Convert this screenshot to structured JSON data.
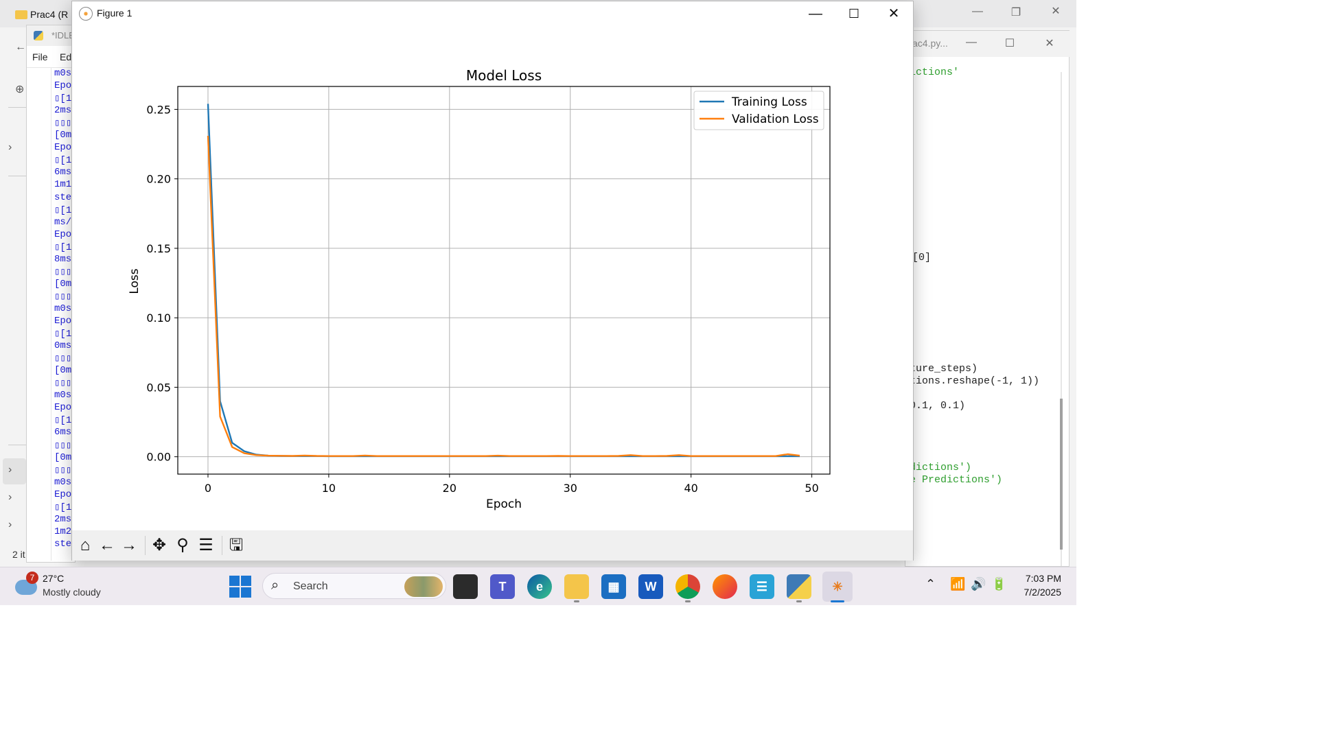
{
  "explorer": {
    "tab_title": "Prac4 (R",
    "status_text": "2 it"
  },
  "idle": {
    "title": "*IDLE",
    "menus": [
      "File",
      "Edi"
    ],
    "output_lines": [
      "m0s",
      "Epo",
      "▯[1i",
      "2ms",
      "▯▯▯▯",
      " [0m",
      "Epo",
      "▯[1i",
      "6ms",
      "1m1",
      "ste",
      "▯[1i",
      "ms/",
      "Epo",
      "▯[1i",
      "8ms",
      "▯▯▯▯",
      " [0m",
      "▯▯▯▯",
      "m0s",
      "Epo",
      "▯[1i",
      "0ms",
      "▯▯▯▯",
      " [0m",
      "▯▯▯▯",
      "m0s",
      "Epo",
      "▯[1i",
      "6ms",
      "▯▯▯▯",
      " [0m",
      "▯▯▯▯",
      "m0s",
      "Epo",
      "▯[1i",
      "2ms",
      "1m2",
      "ste"
    ]
  },
  "editor": {
    "title": "ac4.py...",
    "code_fragments": [
      {
        "text": "ictions'",
        "color": "#2e9e2e"
      },
      {
        "text": "[0]",
        "color": "#222222"
      },
      {
        "text": "ture_steps)",
        "color": "#222222"
      },
      {
        "text": "tions.reshape(-1, 1))",
        "color": "#222222"
      },
      {
        "text": " 0.1, 0.1)",
        "color": "#222222"
      },
      {
        "text": "dictions')",
        "color": "#2e9e2e"
      },
      {
        "text": "e Predictions')",
        "color": "#2e9e2e"
      }
    ]
  },
  "figure": {
    "window_title": "Figure 1",
    "toolbar": [
      "home-icon",
      "back-icon",
      "forward-icon",
      "pan-icon",
      "zoom-icon",
      "configure-icon",
      "save-icon"
    ]
  },
  "chart_data": {
    "type": "line",
    "title": "Model Loss",
    "xlabel": "Epoch",
    "ylabel": "Loss",
    "xlim": [
      -2.5,
      51.5
    ],
    "ylim": [
      -0.0125,
      0.2665
    ],
    "xticks": [
      0,
      10,
      20,
      30,
      40,
      50
    ],
    "yticks": [
      0.0,
      0.05,
      0.1,
      0.15,
      0.2,
      0.25
    ],
    "ytick_labels": [
      "0.00",
      "0.05",
      "0.10",
      "0.15",
      "0.20",
      "0.25"
    ],
    "grid": true,
    "legend_position": "top-right",
    "x": [
      0,
      1,
      2,
      3,
      4,
      5,
      6,
      7,
      8,
      9,
      10,
      11,
      12,
      13,
      14,
      15,
      16,
      17,
      18,
      19,
      20,
      21,
      22,
      23,
      24,
      25,
      26,
      27,
      28,
      29,
      30,
      31,
      32,
      33,
      34,
      35,
      36,
      37,
      38,
      39,
      40,
      41,
      42,
      43,
      44,
      45,
      46,
      47,
      48,
      49
    ],
    "series": [
      {
        "name": "Training Loss",
        "color": "#1f77b4",
        "values": [
          0.254,
          0.04,
          0.01,
          0.004,
          0.0015,
          0.0008,
          0.0006,
          0.0005,
          0.0005,
          0.0005,
          0.0004,
          0.0004,
          0.0004,
          0.0004,
          0.0004,
          0.0004,
          0.0004,
          0.0004,
          0.0004,
          0.0004,
          0.0004,
          0.0004,
          0.0004,
          0.0004,
          0.0004,
          0.0004,
          0.0004,
          0.0004,
          0.0004,
          0.0004,
          0.0004,
          0.0004,
          0.0004,
          0.0004,
          0.0004,
          0.0004,
          0.0004,
          0.0004,
          0.0004,
          0.0004,
          0.0004,
          0.0004,
          0.0004,
          0.0004,
          0.0004,
          0.0004,
          0.0004,
          0.0004,
          0.0004,
          0.0004
        ]
      },
      {
        "name": "Validation Loss",
        "color": "#ff7f0e",
        "values": [
          0.231,
          0.029,
          0.007,
          0.0025,
          0.0012,
          0.0008,
          0.0007,
          0.0006,
          0.0009,
          0.0006,
          0.0005,
          0.0005,
          0.0005,
          0.0009,
          0.0005,
          0.0005,
          0.0005,
          0.0005,
          0.0005,
          0.0005,
          0.0005,
          0.0005,
          0.0005,
          0.0005,
          0.0008,
          0.0005,
          0.0005,
          0.0005,
          0.0005,
          0.0006,
          0.0005,
          0.0005,
          0.0005,
          0.0005,
          0.0006,
          0.0012,
          0.0005,
          0.0005,
          0.0006,
          0.0012,
          0.0005,
          0.0005,
          0.0005,
          0.0005,
          0.0005,
          0.0005,
          0.0005,
          0.0005,
          0.0018,
          0.0008
        ]
      }
    ]
  },
  "taskbar": {
    "weather_badge": "7",
    "temperature": "27°C",
    "condition": "Mostly cloudy",
    "search_placeholder": "Search",
    "time": "7:03 PM",
    "date": "7/2/2025"
  }
}
